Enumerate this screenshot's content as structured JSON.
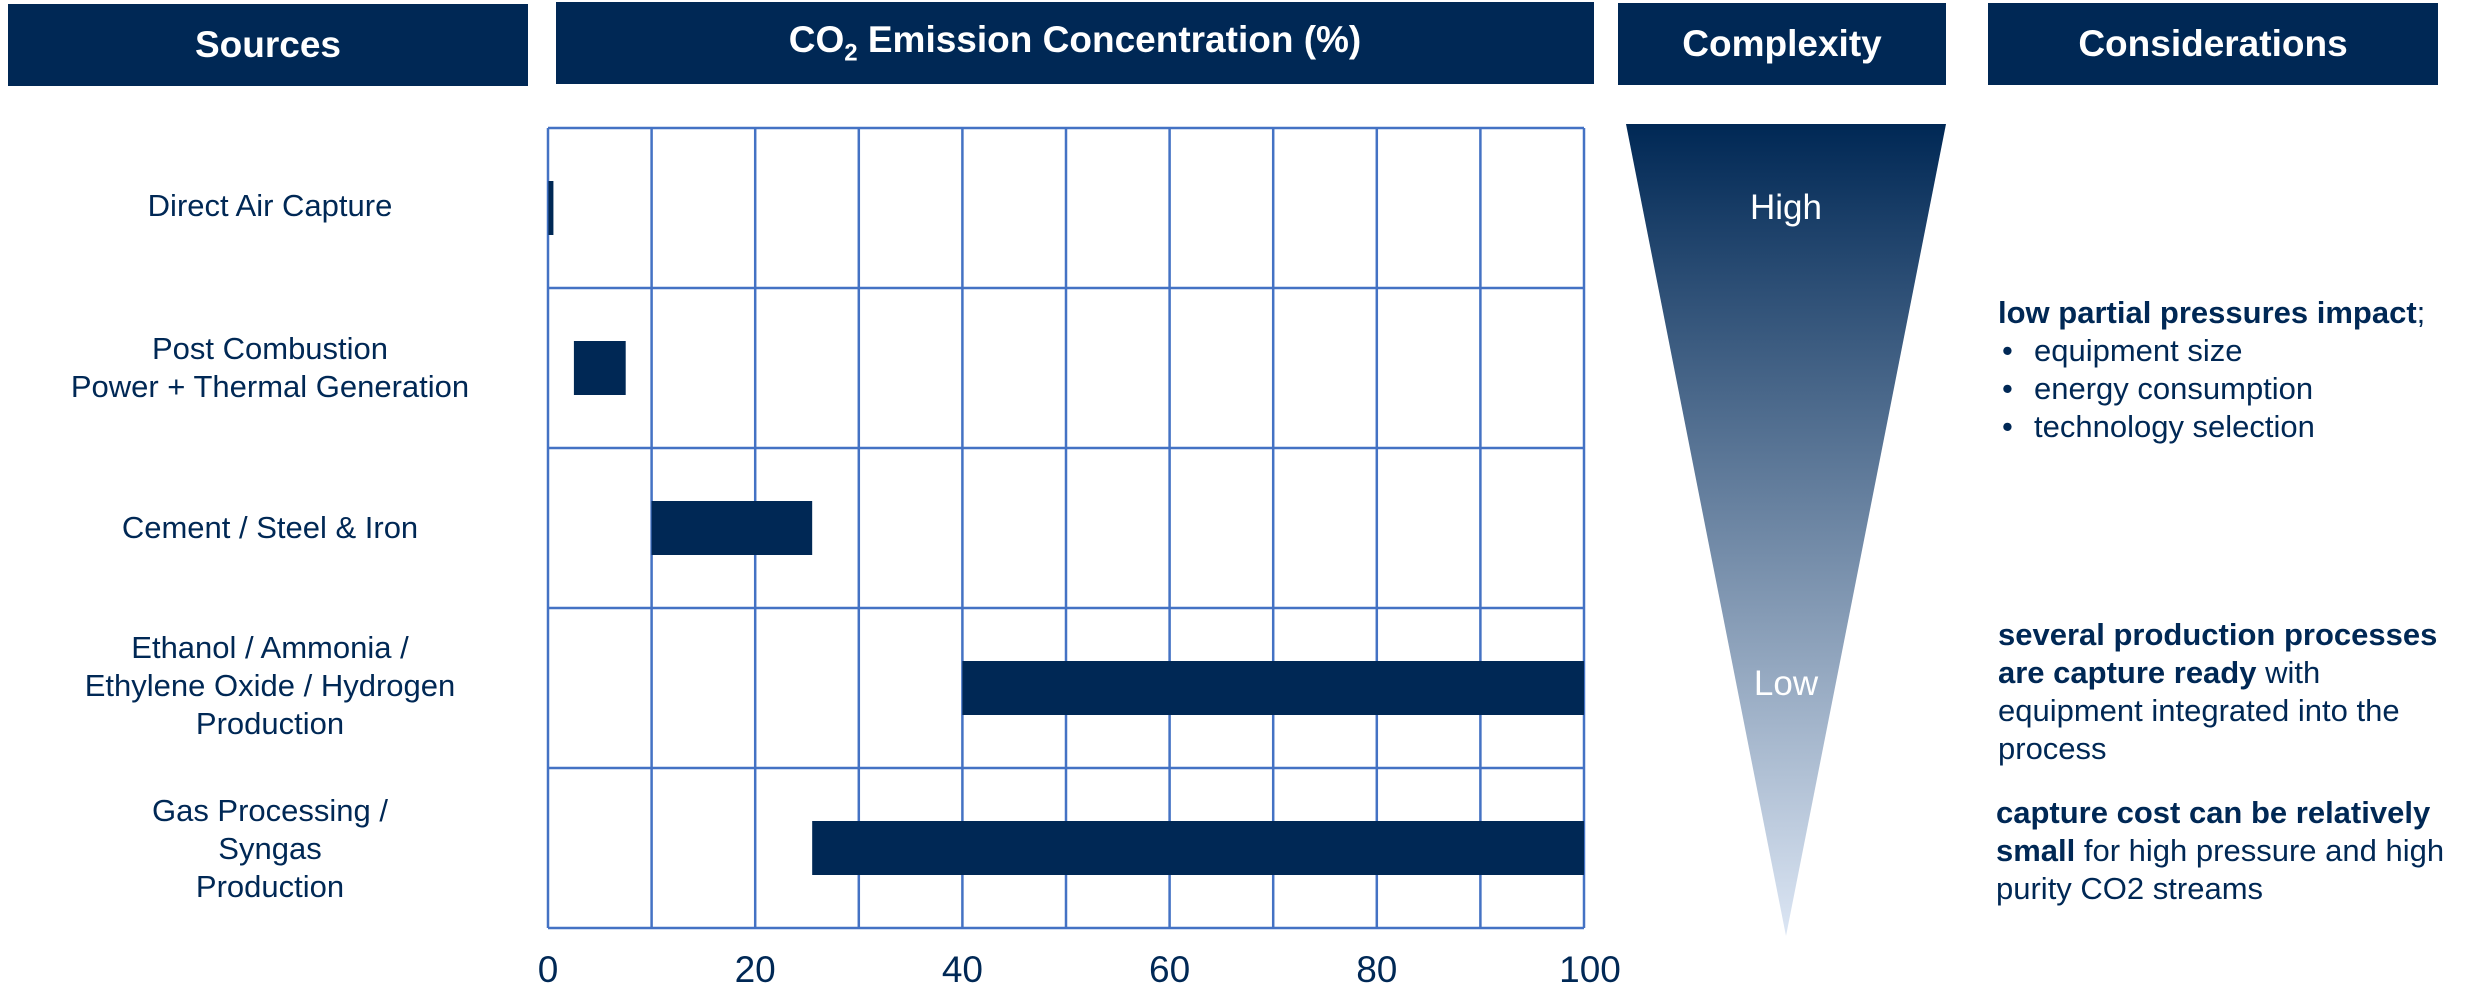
{
  "headers": {
    "sources": "Sources",
    "co2_pre": "CO",
    "co2_sub": "2",
    "co2_post": " Emission Concentration (%)",
    "complexity": "Complexity",
    "considerations": "Considerations"
  },
  "sources": [
    [
      "Direct Air Capture"
    ],
    [
      "Post Combustion",
      "Power + Thermal Generation"
    ],
    [
      "Cement / Steel & Iron"
    ],
    [
      "Ethanol / Ammonia /",
      "Ethylene Oxide / Hydrogen",
      "Production"
    ],
    [
      "Gas Processing /",
      "Syngas",
      "Production"
    ]
  ],
  "chart_data": {
    "type": "bar",
    "orientation": "horizontal-range",
    "title": "CO2 Emission Concentration (%)",
    "categories": [
      "Direct Air Capture",
      "Post Combustion Power + Thermal Generation",
      "Cement / Steel & Iron",
      "Ethanol / Ammonia / Ethylene Oxide / Hydrogen Production",
      "Gas Processing / Syngas Production"
    ],
    "ranges": [
      [
        0.04,
        0.04
      ],
      [
        2.5,
        7.5
      ],
      [
        10,
        25.5
      ],
      [
        40,
        100
      ],
      [
        25.5,
        100
      ]
    ],
    "xlim": [
      0,
      100
    ],
    "xticks": [
      "0",
      "20",
      "40",
      "60",
      "80",
      "100"
    ],
    "grid": true,
    "bar_color": "#002855",
    "grid_color": "#4472c4"
  },
  "complexity": {
    "high": "High",
    "low": "Low",
    "color_top": "#002855",
    "color_bottom": "#dce6f4"
  },
  "considerations": {
    "c1_bold": "low partial pressures impact",
    "c1_tail": ";",
    "c1_bullets": [
      "equipment size",
      "energy consumption",
      "technology selection"
    ],
    "c2_bold": "several production processes are capture ready",
    "c2_tail": " with equipment integrated into the process",
    "c3_bold": "capture cost can be relatively small",
    "c3_tail": " for high pressure and high purity CO2 streams"
  }
}
